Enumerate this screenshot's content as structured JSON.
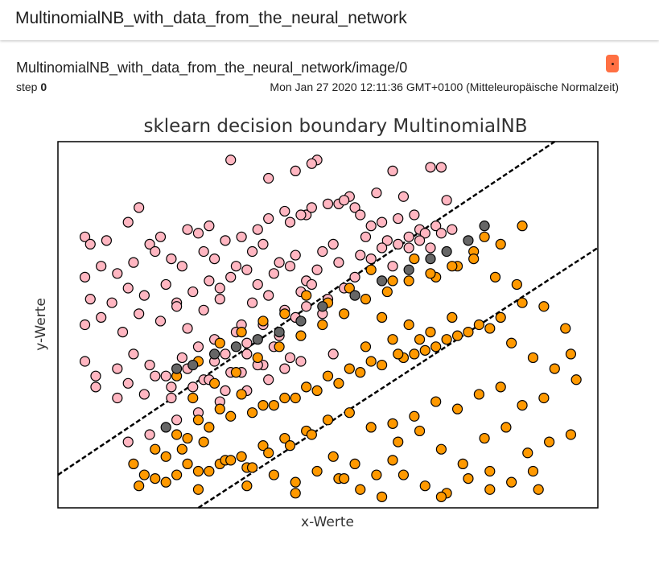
{
  "header": {
    "title": "MultinomialNB_with_data_from_the_neural_network"
  },
  "card": {
    "tag": "MultinomialNB_with_data_from_the_neural_network/image/0",
    "step_label": "step",
    "step_value": "0",
    "timestamp": "Mon Jan 27 2020 12:11:36 GMT+0100 (Mitteleuropäische Normalzeit)",
    "menu_icon": "more-dot-icon",
    "accent": "#ff7043"
  },
  "chart_data": {
    "type": "scatter",
    "title": "sklearn decision boundary MultinomialNB",
    "xlabel": "x-Werte",
    "ylabel": "y-Werte",
    "grid": false,
    "legend": "none",
    "colors": {
      "class_a": "#ffb6c1",
      "class_b": "#ff9900",
      "boundary": "#666666",
      "line": "#000000"
    },
    "boundary_lines": [
      {
        "style": "dashed",
        "points": [
          [
            0.0,
            0.09
          ],
          [
            0.92,
            1.0
          ]
        ]
      },
      {
        "style": "dashed",
        "points": [
          [
            0.26,
            0.0
          ],
          [
            1.0,
            0.71
          ]
        ]
      }
    ],
    "series": [
      {
        "class": "class_a",
        "x": [
          0.32,
          0.39,
          0.48,
          0.44,
          0.62,
          0.69,
          0.71,
          0.54,
          0.59,
          0.64,
          0.52,
          0.55,
          0.46,
          0.43,
          0.58,
          0.66,
          0.72,
          0.05,
          0.06,
          0.09,
          0.13,
          0.15,
          0.17,
          0.19,
          0.24,
          0.26,
          0.28,
          0.31,
          0.34,
          0.37,
          0.39,
          0.42,
          0.45,
          0.47,
          0.5,
          0.53,
          0.56,
          0.6,
          0.63,
          0.67,
          0.7,
          0.05,
          0.08,
          0.11,
          0.14,
          0.18,
          0.21,
          0.23,
          0.27,
          0.29,
          0.33,
          0.36,
          0.38,
          0.41,
          0.44,
          0.49,
          0.51,
          0.57,
          0.61,
          0.65,
          0.68,
          0.56,
          0.6,
          0.63,
          0.65,
          0.67,
          0.69,
          0.71,
          0.73,
          0.06,
          0.1,
          0.13,
          0.16,
          0.2,
          0.22,
          0.25,
          0.28,
          0.3,
          0.32,
          0.35,
          0.37,
          0.4,
          0.43,
          0.46,
          0.48,
          0.52,
          0.55,
          0.58,
          0.62,
          0.05,
          0.08,
          0.12,
          0.15,
          0.19,
          0.22,
          0.24,
          0.27,
          0.3,
          0.34,
          0.36,
          0.39,
          0.42,
          0.45,
          0.47,
          0.5,
          0.53,
          0.05,
          0.07,
          0.11,
          0.14,
          0.17,
          0.2,
          0.23,
          0.26,
          0.29,
          0.31,
          0.33,
          0.35,
          0.38,
          0.41,
          0.44,
          0.46,
          0.49,
          0.07,
          0.11,
          0.13,
          0.16,
          0.18,
          0.21,
          0.24,
          0.27,
          0.29,
          0.32,
          0.35,
          0.38,
          0.4,
          0.43,
          0.21,
          0.25,
          0.28,
          0.31,
          0.34,
          0.37,
          0.13,
          0.17,
          0.22,
          0.26,
          0.3,
          0.35,
          0.39,
          0.42,
          0.45,
          0.51,
          0.47
        ],
        "y": [
          0.95,
          0.9,
          0.95,
          0.92,
          0.92,
          0.93,
          0.93,
          0.85,
          0.86,
          0.85,
          0.83,
          0.82,
          0.8,
          0.78,
          0.77,
          0.8,
          0.84,
          0.74,
          0.72,
          0.73,
          0.78,
          0.82,
          0.72,
          0.74,
          0.76,
          0.75,
          0.77,
          0.73,
          0.74,
          0.76,
          0.79,
          0.81,
          0.8,
          0.82,
          0.83,
          0.84,
          0.8,
          0.78,
          0.79,
          0.76,
          0.77,
          0.63,
          0.66,
          0.64,
          0.67,
          0.7,
          0.68,
          0.66,
          0.7,
          0.68,
          0.66,
          0.7,
          0.72,
          0.67,
          0.69,
          0.7,
          0.72,
          0.74,
          0.73,
          0.71,
          0.75,
          0.69,
          0.71,
          0.72,
          0.74,
          0.73,
          0.71,
          0.75,
          0.76,
          0.57,
          0.56,
          0.6,
          0.58,
          0.61,
          0.56,
          0.59,
          0.62,
          0.6,
          0.63,
          0.65,
          0.61,
          0.64,
          0.66,
          0.62,
          0.65,
          0.67,
          0.63,
          0.68,
          0.66,
          0.5,
          0.52,
          0.48,
          0.53,
          0.51,
          0.55,
          0.49,
          0.54,
          0.57,
          0.5,
          0.56,
          0.58,
          0.54,
          0.59,
          0.61,
          0.57,
          0.6,
          0.4,
          0.36,
          0.38,
          0.42,
          0.39,
          0.36,
          0.41,
          0.44,
          0.46,
          0.42,
          0.48,
          0.45,
          0.5,
          0.47,
          0.52,
          0.55,
          0.53,
          0.33,
          0.3,
          0.34,
          0.31,
          0.36,
          0.33,
          0.38,
          0.35,
          0.4,
          0.37,
          0.42,
          0.39,
          0.44,
          0.41,
          0.3,
          0.33,
          0.35,
          0.32,
          0.37,
          0.39,
          0.18,
          0.2,
          0.24,
          0.26,
          0.29,
          0.32,
          0.35,
          0.38,
          0.4,
          0.42,
          0.94
        ]
      },
      {
        "class": "class_b",
        "x": [
          0.86,
          0.82,
          0.79,
          0.77,
          0.74,
          0.7,
          0.66,
          0.62,
          0.58,
          0.54,
          0.5,
          0.46,
          0.42,
          0.38,
          0.34,
          0.3,
          0.26,
          0.22,
          0.25,
          0.29,
          0.33,
          0.37,
          0.41,
          0.45,
          0.49,
          0.53,
          0.57,
          0.61,
          0.65,
          0.69,
          0.73,
          0.77,
          0.81,
          0.85,
          0.9,
          0.94,
          0.95,
          0.86,
          0.82,
          0.78,
          0.74,
          0.7,
          0.66,
          0.62,
          0.58,
          0.54,
          0.5,
          0.46,
          0.42,
          0.38,
          0.34,
          0.3,
          0.26,
          0.22,
          0.18,
          0.14,
          0.2,
          0.24,
          0.28,
          0.32,
          0.36,
          0.4,
          0.44,
          0.48,
          0.52,
          0.56,
          0.6,
          0.64,
          0.68,
          0.72,
          0.76,
          0.8,
          0.84,
          0.88,
          0.92,
          0.96,
          0.9,
          0.86,
          0.82,
          0.78,
          0.74,
          0.7,
          0.66,
          0.62,
          0.58,
          0.54,
          0.5,
          0.46,
          0.42,
          0.38,
          0.34,
          0.3,
          0.26,
          0.22,
          0.18,
          0.15,
          0.23,
          0.27,
          0.31,
          0.35,
          0.39,
          0.43,
          0.47,
          0.51,
          0.55,
          0.59,
          0.63,
          0.67,
          0.71,
          0.75,
          0.79,
          0.83,
          0.87,
          0.91,
          0.95,
          0.88,
          0.84,
          0.8,
          0.76,
          0.72,
          0.68,
          0.64,
          0.6,
          0.56,
          0.52,
          0.48,
          0.44,
          0.4,
          0.36,
          0.32,
          0.28,
          0.24,
          0.2,
          0.16,
          0.26,
          0.35,
          0.44,
          0.53,
          0.62,
          0.71,
          0.8,
          0.89,
          0.6,
          0.65,
          0.69,
          0.73,
          0.57,
          0.63,
          0.67
        ],
        "y": [
          0.77,
          0.72,
          0.74,
          0.7,
          0.66,
          0.63,
          0.68,
          0.62,
          0.65,
          0.6,
          0.56,
          0.58,
          0.53,
          0.51,
          0.48,
          0.45,
          0.4,
          0.36,
          0.3,
          0.34,
          0.37,
          0.41,
          0.44,
          0.47,
          0.5,
          0.53,
          0.57,
          0.59,
          0.62,
          0.64,
          0.66,
          0.68,
          0.63,
          0.61,
          0.55,
          0.49,
          0.42,
          0.56,
          0.52,
          0.5,
          0.47,
          0.44,
          0.42,
          0.46,
          0.4,
          0.38,
          0.36,
          0.33,
          0.3,
          0.28,
          0.31,
          0.27,
          0.24,
          0.2,
          0.16,
          0.12,
          0.14,
          0.19,
          0.22,
          0.25,
          0.26,
          0.28,
          0.3,
          0.32,
          0.34,
          0.37,
          0.39,
          0.41,
          0.43,
          0.46,
          0.48,
          0.49,
          0.45,
          0.41,
          0.38,
          0.35,
          0.3,
          0.28,
          0.33,
          0.31,
          0.27,
          0.29,
          0.25,
          0.23,
          0.22,
          0.26,
          0.24,
          0.21,
          0.19,
          0.17,
          0.14,
          0.12,
          0.1,
          0.09,
          0.08,
          0.06,
          0.16,
          0.18,
          0.13,
          0.11,
          0.15,
          0.17,
          0.2,
          0.14,
          0.12,
          0.09,
          0.18,
          0.21,
          0.16,
          0.12,
          0.19,
          0.22,
          0.15,
          0.18,
          0.2,
          0.1,
          0.07,
          0.05,
          0.08,
          0.04,
          0.06,
          0.09,
          0.03,
          0.05,
          0.08,
          0.1,
          0.07,
          0.09,
          0.11,
          0.13,
          0.1,
          0.12,
          0.07,
          0.09,
          0.05,
          0.06,
          0.04,
          0.08,
          0.13,
          0.03,
          0.1,
          0.05,
          0.52,
          0.5,
          0.48,
          0.52,
          0.44,
          0.42,
          0.46
        ]
      },
      {
        "class": "boundary",
        "x": [
          0.79,
          0.76,
          0.72,
          0.69,
          0.65,
          0.6,
          0.55,
          0.49,
          0.45,
          0.41,
          0.37,
          0.33,
          0.29,
          0.25,
          0.22,
          0.2
        ],
        "y": [
          0.77,
          0.73,
          0.7,
          0.68,
          0.65,
          0.62,
          0.58,
          0.55,
          0.51,
          0.48,
          0.46,
          0.44,
          0.42,
          0.39,
          0.38,
          0.22
        ]
      }
    ]
  }
}
